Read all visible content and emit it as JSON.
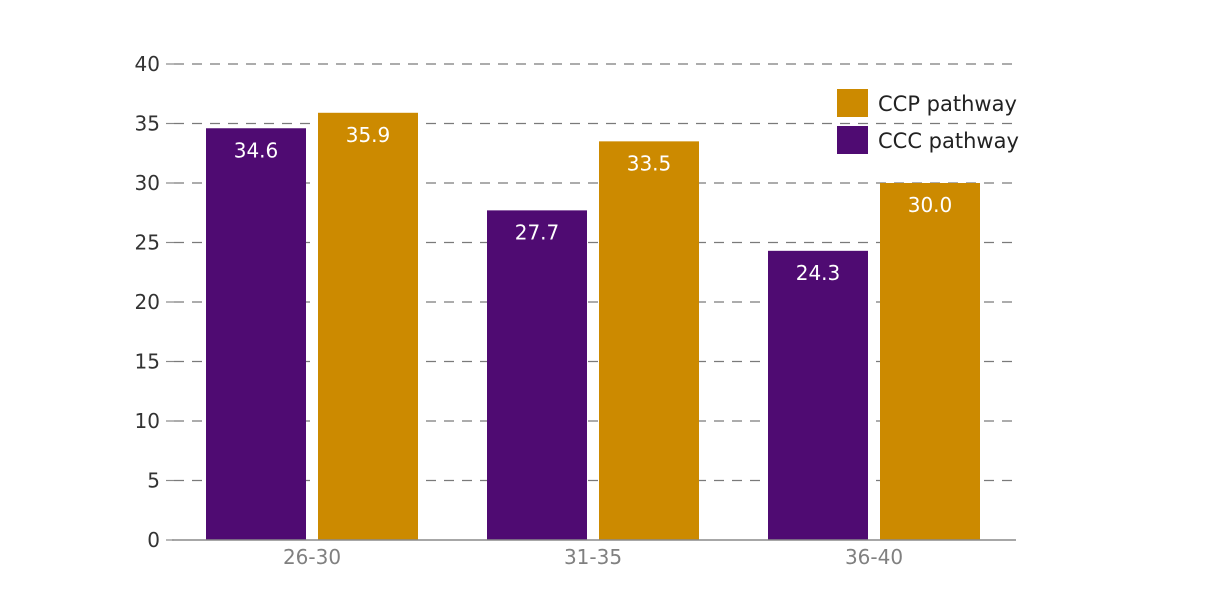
{
  "chart_data": {
    "type": "bar",
    "categories": [
      "26-30",
      "31-35",
      "36-40"
    ],
    "series": [
      {
        "name": "CCC pathway",
        "values": [
          34.6,
          27.7,
          24.3
        ],
        "labels": [
          "34.6",
          "27.7",
          "24.3"
        ],
        "color": "#4f0b72"
      },
      {
        "name": "CCP pathway",
        "values": [
          35.9,
          33.5,
          30.0
        ],
        "labels": [
          "35.9",
          "33.5",
          "30.0"
        ],
        "color": "#cc8a00"
      }
    ],
    "legend": {
      "placement": "top-right",
      "entries": [
        {
          "label": "CCP pathway",
          "color": "#cc8a00"
        },
        {
          "label": "CCC pathway",
          "color": "#4f0b72"
        }
      ]
    },
    "yticks": [
      "0",
      "5",
      "10",
      "15",
      "20",
      "25",
      "30",
      "35",
      "40"
    ],
    "ylim": [
      0,
      40
    ],
    "grid": true,
    "title": "",
    "xlabel": "",
    "ylabel": ""
  }
}
